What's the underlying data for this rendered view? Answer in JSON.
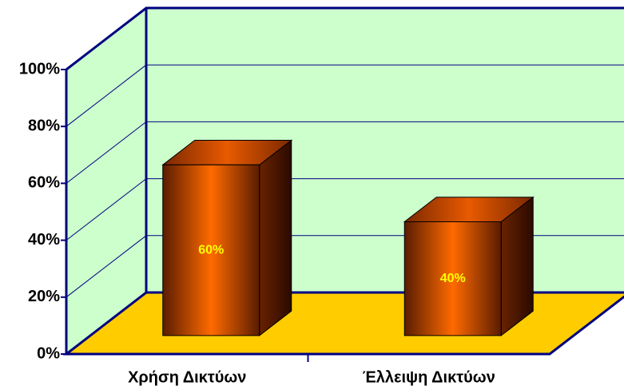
{
  "chart_data": {
    "type": "bar3d",
    "categories": [
      "Χρήση Δικτύων",
      "Έλλειψη Δικτύων"
    ],
    "values": [
      60,
      40
    ],
    "value_labels": [
      "60%",
      "40%"
    ],
    "ylim": [
      0,
      100
    ],
    "yticks": [
      {
        "value": 0,
        "label": "0%"
      },
      {
        "value": 20,
        "label": "20%"
      },
      {
        "value": 40,
        "label": "40%"
      },
      {
        "value": 60,
        "label": "60%"
      },
      {
        "value": 80,
        "label": "80%"
      },
      {
        "value": 100,
        "label": "100%"
      }
    ],
    "grid": true,
    "color": "#ff6600"
  }
}
